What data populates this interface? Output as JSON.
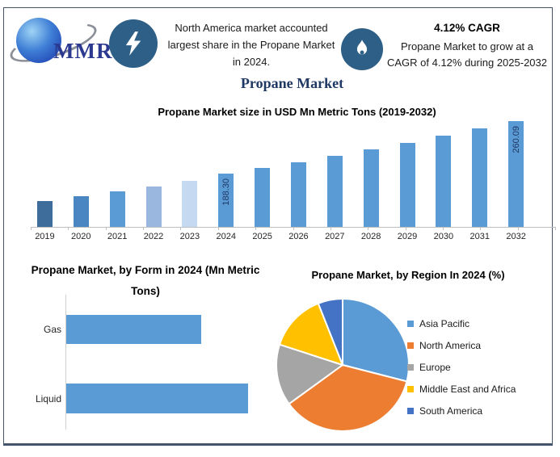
{
  "logo": {
    "text": "MMR"
  },
  "header": {
    "left_callout": "North America market accounted largest share in the Propane Market in 2024.",
    "cagr_value": "4.12% CAGR",
    "cagr_detail": "Propane Market to grow at a CAGR of 4.12% during 2025-2032"
  },
  "main_title": "Propane Market",
  "colors": {
    "icon_circle": "#2e5f87",
    "accent_navy": "#1f3864",
    "axis_gray": "#bfbfbf",
    "frame_border": "#44546a"
  },
  "chart_data": [
    {
      "id": "market_size",
      "type": "bar",
      "title": "Propane Market size in USD Mn Metric Tons (2019-2032)",
      "categories": [
        "2019",
        "2020",
        "2021",
        "2022",
        "2023",
        "2024",
        "2025",
        "2026",
        "2027",
        "2028",
        "2029",
        "2030",
        "2031",
        "2032"
      ],
      "values": [
        150.5,
        157.0,
        163.6,
        170.6,
        178.5,
        188.3,
        196.06,
        204.14,
        212.55,
        221.31,
        230.43,
        239.92,
        249.81,
        260.09
      ],
      "data_labels": [
        "",
        "",
        "",
        "",
        "",
        "188.30",
        "",
        "",
        "",
        "",
        "",
        "",
        "",
        "260.09"
      ],
      "bar_colors": [
        "#3e6d9c",
        "#4a86c2",
        "#5b9bd5",
        "#9ab7e0",
        "#c5d9f1",
        "#5b9bd5",
        "#5b9bd5",
        "#5b9bd5",
        "#5b9bd5",
        "#5b9bd5",
        "#5b9bd5",
        "#5b9bd5",
        "#5b9bd5",
        "#5b9bd5"
      ],
      "ylim": [
        115,
        260.09
      ],
      "grid": false,
      "value_axis_visible": false
    },
    {
      "id": "by_form",
      "type": "bar",
      "orientation": "horizontal",
      "title": "Propane Market, by Form in 2024 (Mn Metric Tons)",
      "categories": [
        "Gas",
        "Liquid"
      ],
      "values": [
        74,
        100
      ],
      "bar_color": "#5b9bd5",
      "xlim": [
        0,
        100
      ],
      "grid": false,
      "value_axis_visible": false
    },
    {
      "id": "by_region",
      "type": "pie",
      "title": "Propane Market, by Region In 2024 (%)",
      "labels": [
        "Asia Pacific",
        "North America",
        "Europe",
        "Middle East and Africa",
        "South America"
      ],
      "values": [
        29,
        36,
        15,
        14,
        6
      ],
      "colors": [
        "#5b9bd5",
        "#ed7d31",
        "#a5a5a5",
        "#ffc000",
        "#4472c4"
      ],
      "legend_position": "right",
      "start_angle_deg": 0
    }
  ]
}
